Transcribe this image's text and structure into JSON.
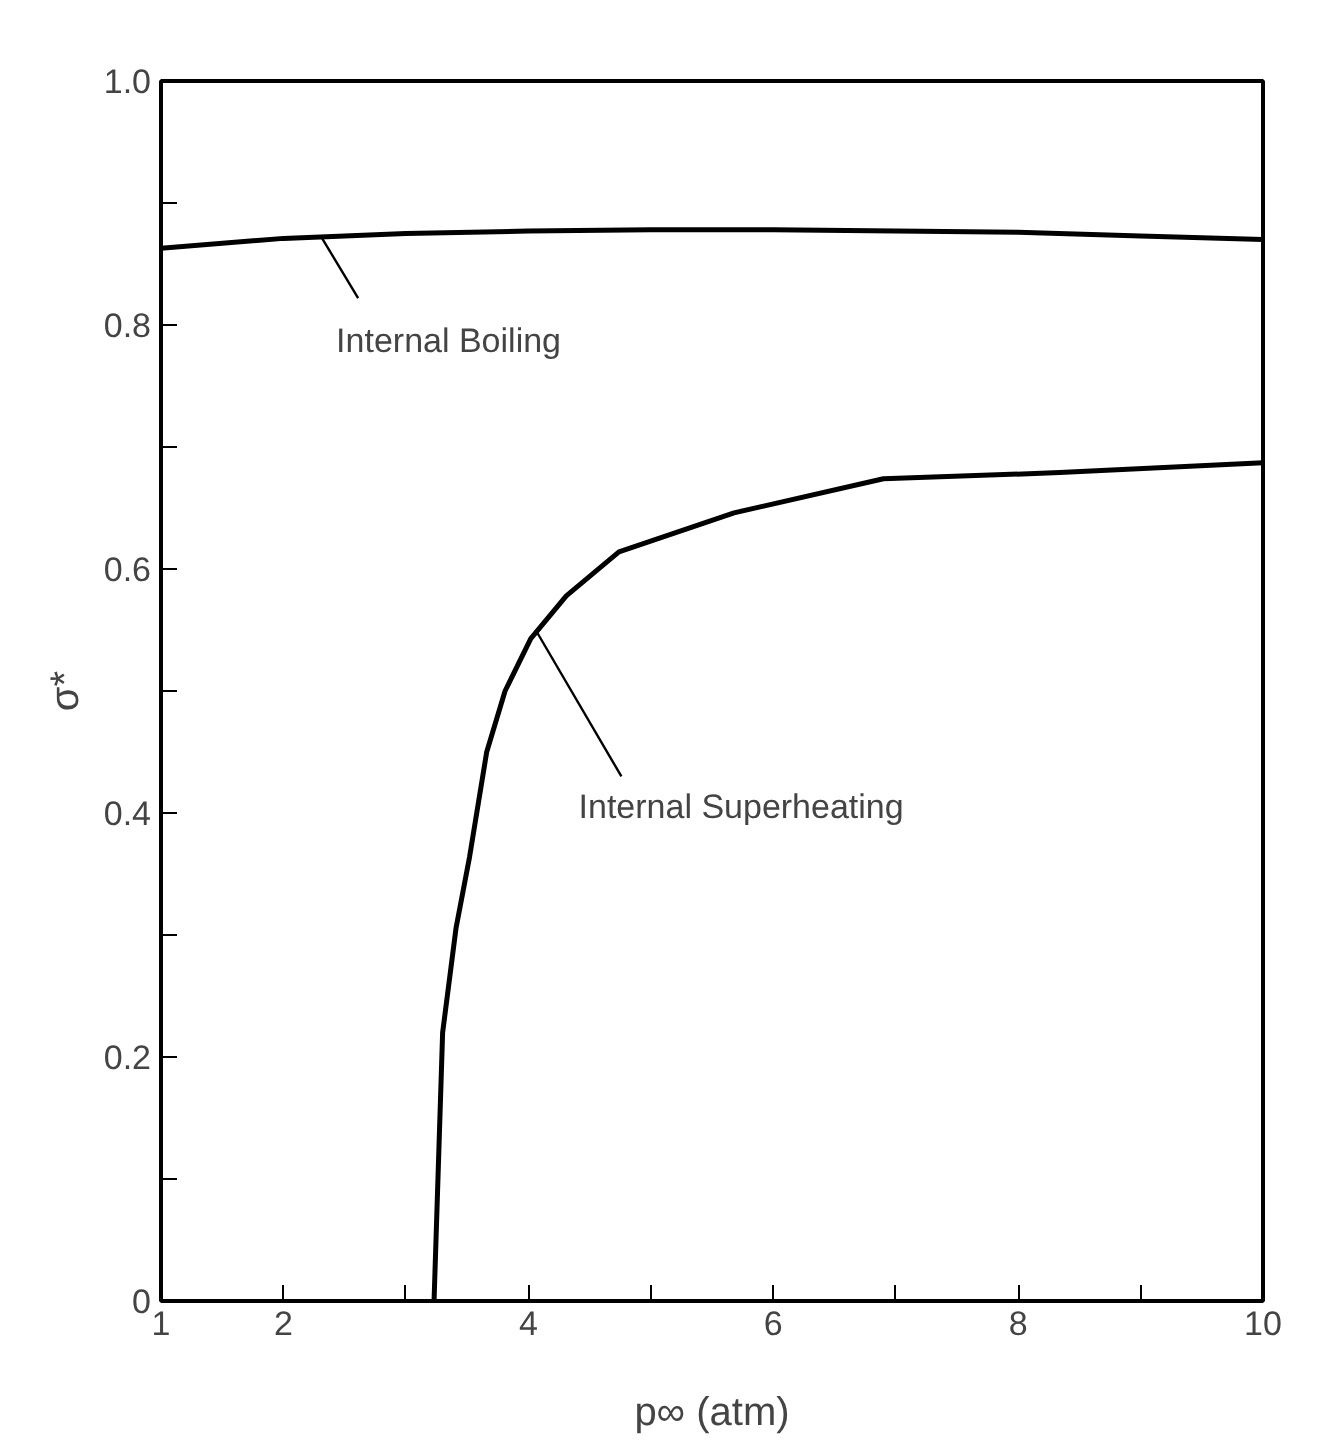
{
  "chart_data": {
    "type": "line",
    "xlabel": "p∞ (atm)",
    "ylabel": "σ*",
    "xlim": [
      1,
      10
    ],
    "ylim": [
      0,
      1.0
    ],
    "xticks": [
      {
        "value": 1,
        "label": "1"
      },
      2,
      {
        "value": 3,
        "label": null
      },
      4,
      {
        "value": 5,
        "label": null
      },
      6,
      {
        "value": 7,
        "label": null
      },
      8,
      {
        "value": 9,
        "label": null
      },
      10
    ],
    "yticks": [
      0,
      {
        "value": 0.1,
        "label": null
      },
      0.2,
      {
        "value": 0.3,
        "label": null
      },
      0.4,
      {
        "value": 0.5,
        "label": null
      },
      0.6,
      {
        "value": 0.7,
        "label": null
      },
      0.8,
      {
        "value": 0.9,
        "label": null
      },
      {
        "value": 1.0,
        "label": "1.0"
      }
    ],
    "grid": false,
    "line_style": "solid",
    "marker": "none",
    "series": [
      {
        "color": "#000000",
        "x": [
          1,
          2,
          3,
          4,
          5,
          6,
          7,
          8,
          9,
          10
        ],
        "values": [
          0.863,
          0.871,
          0.875,
          0.877,
          0.878,
          0.878,
          0.877,
          0.876,
          0.873,
          0.87
        ]
      },
      {
        "color": "#000000",
        "x": [
          3.23,
          3.3,
          3.41,
          3.52,
          3.66,
          3.81,
          4.02,
          4.31,
          4.74,
          5.68,
          6.9,
          8.34,
          10
        ],
        "values": [
          0,
          0.22,
          0.306,
          0.364,
          0.45,
          0.5,
          0.543,
          0.578,
          0.614,
          0.646,
          0.674,
          0.679,
          0.687
        ]
      }
    ],
    "annotations": [
      {
        "text": "Internal Boiling",
        "x": 2.31,
        "y": 0.872
      },
      {
        "text": "Internal Superheating",
        "x": 4.06,
        "y": 0.55
      }
    ]
  }
}
